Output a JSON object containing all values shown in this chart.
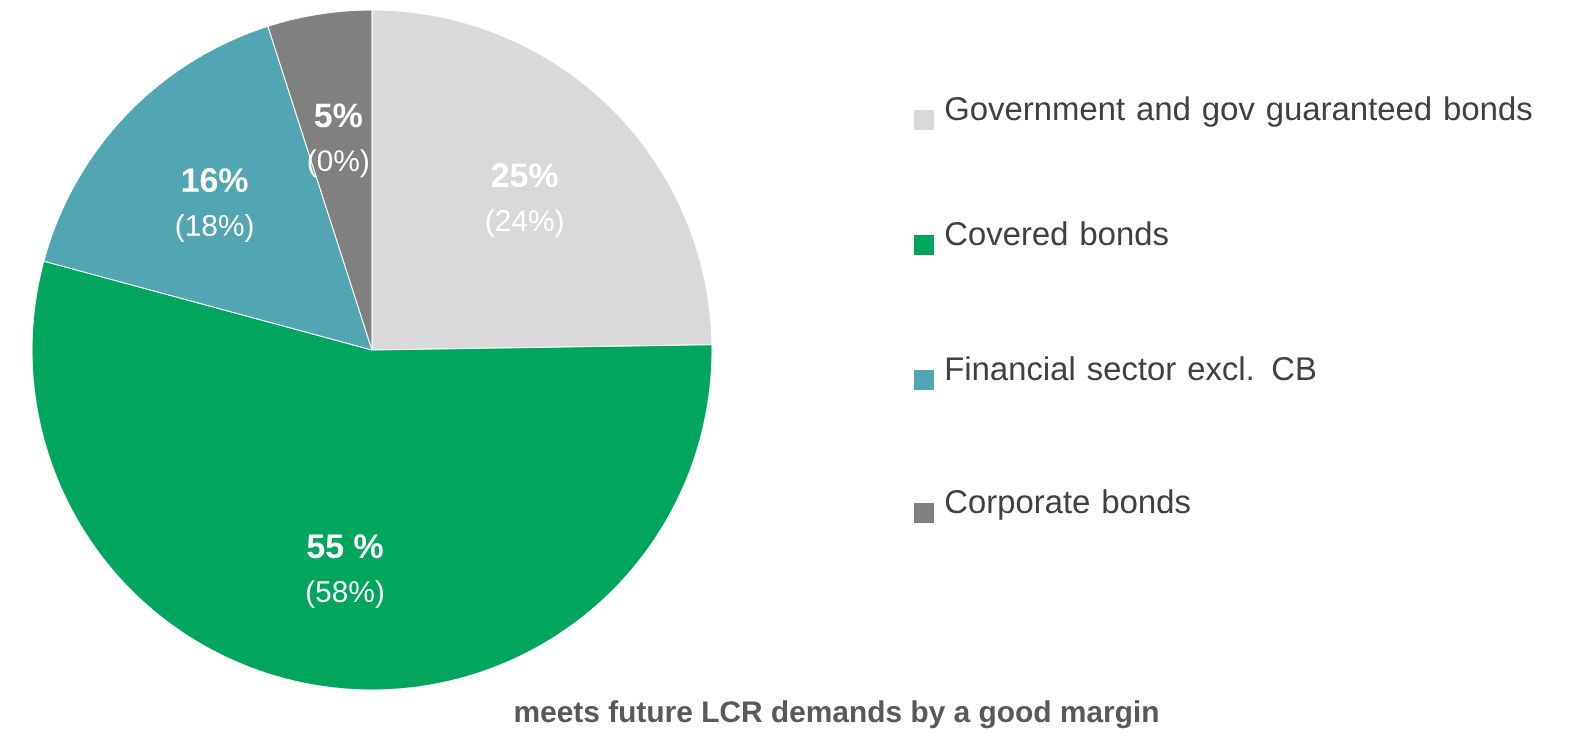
{
  "chart_data": {
    "type": "pie",
    "categories": [
      "Government and gov guaranteed bonds",
      "Covered bonds",
      "Financial sector  excl. CB",
      "Corporate bonds"
    ],
    "values": [
      25,
      55,
      16,
      5
    ],
    "colors": [
      "#d9d9d9",
      "#00a65d",
      "#52a5b3",
      "#808080"
    ],
    "value_labels": [
      "25%",
      "55 %",
      "16%",
      "5%"
    ],
    "legend": "right",
    "annotations": [
      "(24%)",
      "(58%)",
      "(18%)",
      "(0%)",
      "meets future LCR demands by a good margin"
    ]
  }
}
